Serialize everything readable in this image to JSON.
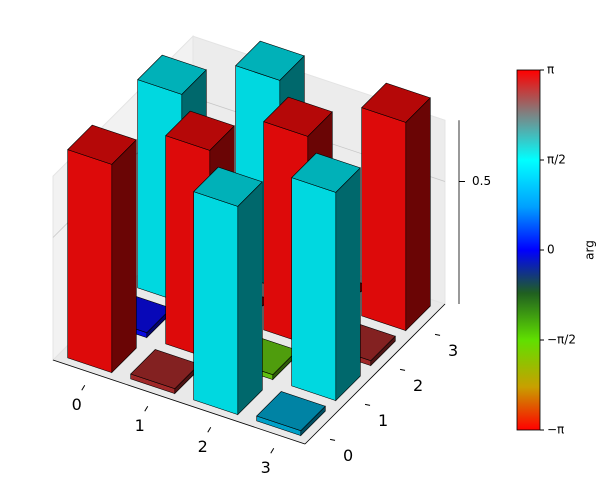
{
  "chart_data": {
    "type": "bar3d",
    "x_categories": [
      "0",
      "1",
      "2",
      "3"
    ],
    "y_categories": [
      "0",
      "1",
      "2",
      "3"
    ],
    "values": [
      [
        0.85,
        0.02,
        0.85,
        0
      ],
      [
        0.02,
        0.85,
        0,
        0.85
      ],
      [
        0.85,
        0.02,
        0.85,
        0
      ],
      [
        0.02,
        0.85,
        0.02,
        0.85
      ]
    ],
    "colors": [
      [
        "#dd0a0a",
        "#0a0ae0",
        "#00d8e0",
        "#dd0a0a"
      ],
      [
        "#a02828",
        "#dd0a0a",
        "#dd0a0a",
        "#00d8e0"
      ],
      [
        "#00d8e0",
        "#60c010",
        "#dd0a0a",
        "#dd0a0a"
      ],
      [
        "#00a0c8",
        "#00d8e0",
        "#a02828",
        "#dd0a0a"
      ]
    ],
    "zlim": [
      0,
      0.75
    ],
    "zticks": [
      0.5
    ],
    "colorbar": {
      "label": "arg",
      "clim": [
        -3.1416,
        3.1416
      ],
      "ticks": [
        {
          "value": 3.1416,
          "label": "π"
        },
        {
          "value": 1.5708,
          "label": "π/2"
        },
        0,
        {
          "value": -1.5708,
          "label": "−π/2"
        },
        {
          "value": -3.1416,
          "label": "−π"
        }
      ]
    }
  }
}
